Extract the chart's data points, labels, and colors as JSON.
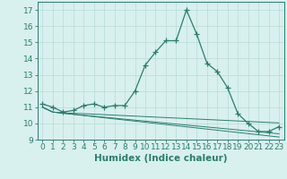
{
  "xlabel": "Humidex (Indice chaleur)",
  "x": [
    0,
    1,
    2,
    3,
    4,
    5,
    6,
    7,
    8,
    9,
    10,
    11,
    12,
    13,
    14,
    15,
    16,
    17,
    18,
    19,
    20,
    21,
    22,
    23
  ],
  "line1": [
    11.2,
    11.0,
    10.7,
    10.8,
    11.1,
    11.2,
    11.0,
    11.1,
    11.1,
    12.0,
    13.6,
    14.4,
    15.1,
    15.1,
    17.0,
    15.5,
    13.7,
    13.2,
    12.2,
    10.6,
    10.0,
    9.5,
    9.5,
    9.8
  ],
  "line2": [
    11.0,
    10.7,
    10.65,
    10.62,
    10.6,
    10.57,
    10.54,
    10.51,
    10.48,
    10.45,
    10.42,
    10.39,
    10.36,
    10.33,
    10.3,
    10.27,
    10.24,
    10.21,
    10.18,
    10.15,
    10.12,
    10.09,
    10.06,
    10.03
  ],
  "line3": [
    11.0,
    10.7,
    10.63,
    10.56,
    10.5,
    10.44,
    10.38,
    10.32,
    10.26,
    10.2,
    10.14,
    10.08,
    10.02,
    9.96,
    9.9,
    9.84,
    9.78,
    9.72,
    9.66,
    9.6,
    9.54,
    9.48,
    9.42,
    9.36
  ],
  "line4": [
    11.0,
    10.7,
    10.63,
    10.56,
    10.49,
    10.42,
    10.35,
    10.28,
    10.21,
    10.14,
    10.07,
    10.0,
    9.93,
    9.86,
    9.79,
    9.72,
    9.65,
    9.58,
    9.51,
    9.44,
    9.37,
    9.3,
    9.23,
    9.16
  ],
  "line_color": "#2d7d6e",
  "bg_color": "#d8f0ee",
  "grid_color": "#b8dbd8",
  "ylim": [
    9,
    17.5
  ],
  "yticks": [
    9,
    10,
    11,
    12,
    13,
    14,
    15,
    16,
    17
  ],
  "xlim": [
    -0.5,
    23.5
  ],
  "tick_fontsize": 6.5,
  "label_fontsize": 7.5
}
